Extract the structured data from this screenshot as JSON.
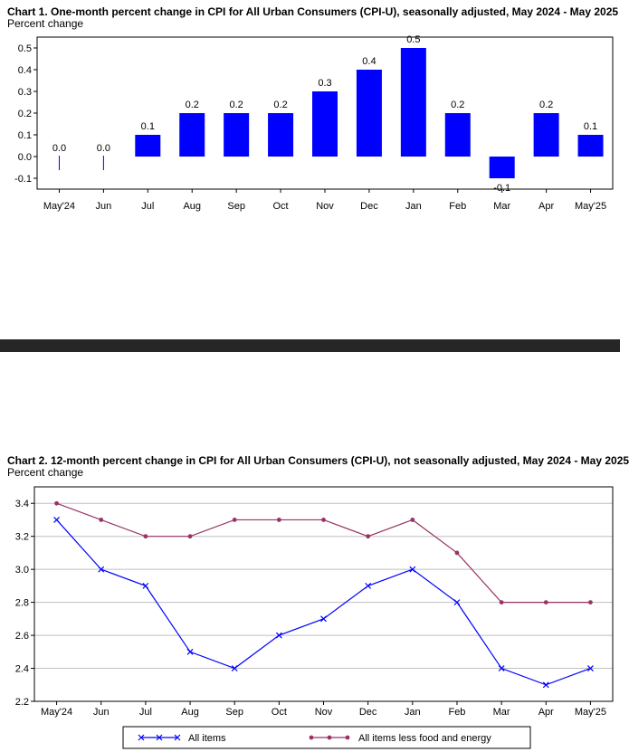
{
  "chart1": {
    "title": "Chart 1. One-month percent change in CPI for All Urban Consumers (CPI-U), seasonally adjusted, May 2024 - May 2025",
    "ylabel": "Percent change",
    "chart_data": {
      "type": "bar",
      "categories": [
        "May'24",
        "Jun",
        "Jul",
        "Aug",
        "Sep",
        "Oct",
        "Nov",
        "Dec",
        "Jan",
        "Feb",
        "Mar",
        "Apr",
        "May'25"
      ],
      "values": [
        0.0,
        0.0,
        0.1,
        0.2,
        0.2,
        0.2,
        0.3,
        0.4,
        0.5,
        0.2,
        -0.1,
        0.2,
        0.1
      ],
      "value_labels": [
        "0.0",
        "0.0",
        "0.1",
        "0.2",
        "0.2",
        "0.2",
        "0.3",
        "0.4",
        "0.5",
        "0.2",
        "-0.1",
        "0.2",
        "0.1"
      ],
      "yticks": [
        -0.1,
        0.0,
        0.1,
        0.2,
        0.3,
        0.4,
        0.5
      ],
      "ytick_labels": [
        "-0.1",
        "0.0",
        "0.1",
        "0.2",
        "0.3",
        "0.4",
        "0.5"
      ],
      "ylim": [
        -0.15,
        0.55
      ],
      "color": "#0000ff",
      "grid": false
    }
  },
  "chart2": {
    "title": "Chart 2. 12-month percent change in CPI for All Urban Consumers (CPI-U), not seasonally adjusted, May 2024 - May 2025",
    "ylabel": "Percent change",
    "chart_data": {
      "type": "line",
      "categories": [
        "May'24",
        "Jun",
        "Jul",
        "Aug",
        "Sep",
        "Oct",
        "Nov",
        "Dec",
        "Jan",
        "Feb",
        "Mar",
        "Apr",
        "May'25"
      ],
      "series": [
        {
          "name": "All items",
          "values": [
            3.3,
            3.0,
            2.9,
            2.5,
            2.4,
            2.6,
            2.7,
            2.9,
            3.0,
            2.8,
            2.4,
            2.3,
            2.4
          ],
          "color": "#0000ff",
          "marker": "x"
        },
        {
          "name": "All items less food and energy",
          "values": [
            3.4,
            3.3,
            3.2,
            3.2,
            3.3,
            3.3,
            3.3,
            3.2,
            3.3,
            3.1,
            2.8,
            2.8,
            2.8
          ],
          "color": "#993366",
          "marker": "circle"
        }
      ],
      "yticks": [
        2.2,
        2.4,
        2.6,
        2.8,
        3.0,
        3.2,
        3.4
      ],
      "ytick_labels": [
        "2.2",
        "2.4",
        "2.6",
        "2.8",
        "3.0",
        "3.2",
        "3.4"
      ],
      "ylim": [
        2.2,
        3.5
      ],
      "grid": true,
      "legend": "bottom"
    }
  }
}
